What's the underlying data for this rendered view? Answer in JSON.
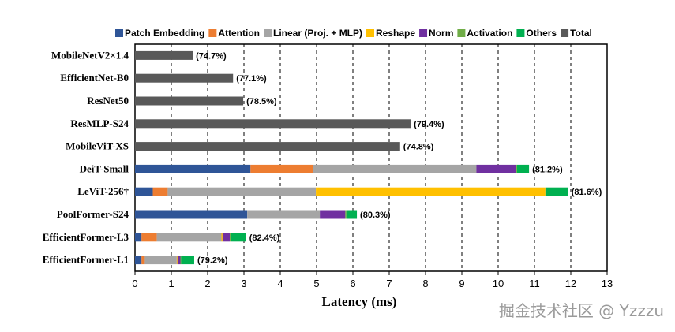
{
  "chart_data": {
    "type": "bar",
    "orientation": "horizontal",
    "stacked": true,
    "xlabel": "Latency (ms)",
    "xlim": [
      0,
      13
    ],
    "xticks": [
      0,
      1,
      2,
      3,
      4,
      5,
      6,
      7,
      8,
      9,
      10,
      11,
      12,
      13
    ],
    "grid": "vertical dashed",
    "legend_position": "top",
    "components": [
      "Patch Embedding",
      "Attention",
      "Linear (Proj. + MLP)",
      "Reshape",
      "Norm",
      "Activation",
      "Others",
      "Total"
    ],
    "colors": {
      "Patch Embedding": "#2f5597",
      "Attention": "#ed7d31",
      "Linear (Proj. + MLP)": "#a5a5a5",
      "Reshape": "#ffc000",
      "Norm": "#7030a0",
      "Activation": "#70ad47",
      "Others": "#00b050",
      "Total": "#595959"
    },
    "models": [
      {
        "name": "MobileNetV2×1.4",
        "annotation": "(74.7%)",
        "segments": {
          "Total": 1.59
        }
      },
      {
        "name": "EfficientNet-B0",
        "annotation": "(77.1%)",
        "segments": {
          "Total": 2.7
        }
      },
      {
        "name": "ResNet50",
        "annotation": "(78.5%)",
        "segments": {
          "Total": 2.98
        }
      },
      {
        "name": "ResMLP-S24",
        "annotation": "(79.4%)",
        "segments": {
          "Total": 7.59
        }
      },
      {
        "name": "MobileViT-XS",
        "annotation": "(74.8%)",
        "segments": {
          "Total": 7.3
        }
      },
      {
        "name": "DeiT-Small",
        "annotation": "(81.2%)",
        "segments": {
          "Patch Embedding": 3.18,
          "Attention": 1.72,
          "Linear (Proj. + MLP)": 4.5,
          "Reshape": 0,
          "Norm": 1.08,
          "Activation": 0.04,
          "Others": 0.33
        }
      },
      {
        "name": "LeViT-256†",
        "annotation": "(81.6%)",
        "segments": {
          "Patch Embedding": 0.49,
          "Attention": 0.41,
          "Linear (Proj. + MLP)": 4.08,
          "Reshape": 6.32,
          "Norm": 0,
          "Activation": 0.02,
          "Others": 0.61
        }
      },
      {
        "name": "PoolFormer-S24",
        "annotation": "(80.3%)",
        "segments": {
          "Patch Embedding": 3.09,
          "Attention": 0,
          "Linear (Proj. + MLP)": 2.0,
          "Reshape": 0,
          "Norm": 0.7,
          "Activation": 0.03,
          "Others": 0.29
        }
      },
      {
        "name": "EfficientFormer-L3",
        "annotation": "(82.4%)",
        "segments": {
          "Patch Embedding": 0.18,
          "Attention": 0.42,
          "Linear (Proj. + MLP)": 1.78,
          "Reshape": 0.03,
          "Norm": 0.2,
          "Activation": 0.04,
          "Others": 0.41
        }
      },
      {
        "name": "EfficientFormer-L1",
        "annotation": "(79.2%)",
        "segments": {
          "Patch Embedding": 0.18,
          "Attention": 0.09,
          "Linear (Proj. + MLP)": 0.88,
          "Reshape": 0.02,
          "Norm": 0.08,
          "Activation": 0.02,
          "Others": 0.36
        }
      }
    ]
  },
  "watermark": "掘金技术社区 @ Yzzzu"
}
